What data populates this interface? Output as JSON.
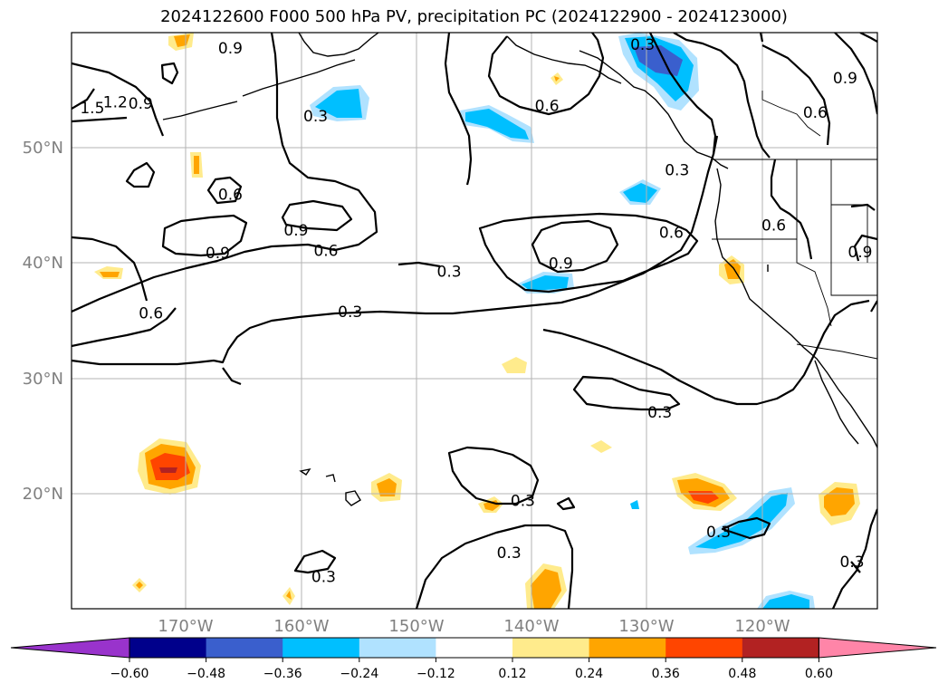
{
  "title": "2024122600 F000 500 hPa PV, precipitation PC (2024122900 - 2024123000)",
  "map": {
    "lon_range": [
      -180,
      -110
    ],
    "lat_range": [
      10,
      60
    ],
    "lat_ticks": [
      {
        "value": 50,
        "label": "50°N"
      },
      {
        "value": 40,
        "label": "40°N"
      },
      {
        "value": 30,
        "label": "30°N"
      },
      {
        "value": 20,
        "label": "20°N"
      }
    ],
    "lon_ticks": [
      {
        "value": -170,
        "label": "170°W"
      },
      {
        "value": -160,
        "label": "160°W"
      },
      {
        "value": -150,
        "label": "150°W"
      },
      {
        "value": -140,
        "label": "140°W"
      },
      {
        "value": -130,
        "label": "130°W"
      },
      {
        "value": -120,
        "label": "120°W"
      }
    ],
    "grid": true,
    "contour_labels": [
      {
        "text": "0.9",
        "lon": -166.2,
        "lat": 58.6
      },
      {
        "text": "1.5",
        "lon": -178.2,
        "lat": 53.4
      },
      {
        "text": "1.2",
        "lon": -176.2,
        "lat": 53.9
      },
      {
        "text": "0.9",
        "lon": -174.0,
        "lat": 53.8
      },
      {
        "text": "0.3",
        "lon": -158.8,
        "lat": 52.7
      },
      {
        "text": "0.6",
        "lon": -166.2,
        "lat": 45.9
      },
      {
        "text": "0.9",
        "lon": -160.5,
        "lat": 42.8
      },
      {
        "text": "0.6",
        "lon": -157.9,
        "lat": 41.0
      },
      {
        "text": "0.9",
        "lon": -167.3,
        "lat": 40.8
      },
      {
        "text": "0.6",
        "lon": -173.1,
        "lat": 35.6
      },
      {
        "text": "0.3",
        "lon": -147.2,
        "lat": 39.2
      },
      {
        "text": "0.3",
        "lon": -155.8,
        "lat": 35.7
      },
      {
        "text": "0.6",
        "lon": -138.7,
        "lat": 53.6
      },
      {
        "text": "0.3",
        "lon": -130.4,
        "lat": 58.9
      },
      {
        "text": "0.3",
        "lon": -127.4,
        "lat": 48.0
      },
      {
        "text": "0.6",
        "lon": -127.9,
        "lat": 42.6
      },
      {
        "text": "0.9",
        "lon": -137.5,
        "lat": 39.9
      },
      {
        "text": "0.3",
        "lon": -128.9,
        "lat": 27.0
      },
      {
        "text": "0.3",
        "lon": -140.8,
        "lat": 19.3
      },
      {
        "text": "0.3",
        "lon": -142.0,
        "lat": 14.8
      },
      {
        "text": "0.3",
        "lon": -158.1,
        "lat": 12.7
      },
      {
        "text": "0.3",
        "lon": -123.8,
        "lat": 16.6
      },
      {
        "text": "0.6",
        "lon": -119.0,
        "lat": 43.2
      },
      {
        "text": "0.6",
        "lon": -115.4,
        "lat": 53.0
      },
      {
        "text": "0.9",
        "lon": -112.8,
        "lat": 56.0
      },
      {
        "text": "0.9",
        "lon": -111.5,
        "lat": 40.9
      },
      {
        "text": "0.3",
        "lon": -112.2,
        "lat": 14.0
      }
    ]
  },
  "colorbar": {
    "ticks": [
      "−0.60",
      "−0.48",
      "−0.36",
      "−0.24",
      "−0.12",
      "0.12",
      "0.24",
      "0.36",
      "0.48",
      "0.60"
    ],
    "colors": [
      "#9933cc",
      "#00008b",
      "#3a5fcd",
      "#00bfff",
      "#b0e2ff",
      "#ffffff",
      "#ffeb8c",
      "#ffa500",
      "#ff4500",
      "#b22222",
      "#ff85a8"
    ]
  }
}
